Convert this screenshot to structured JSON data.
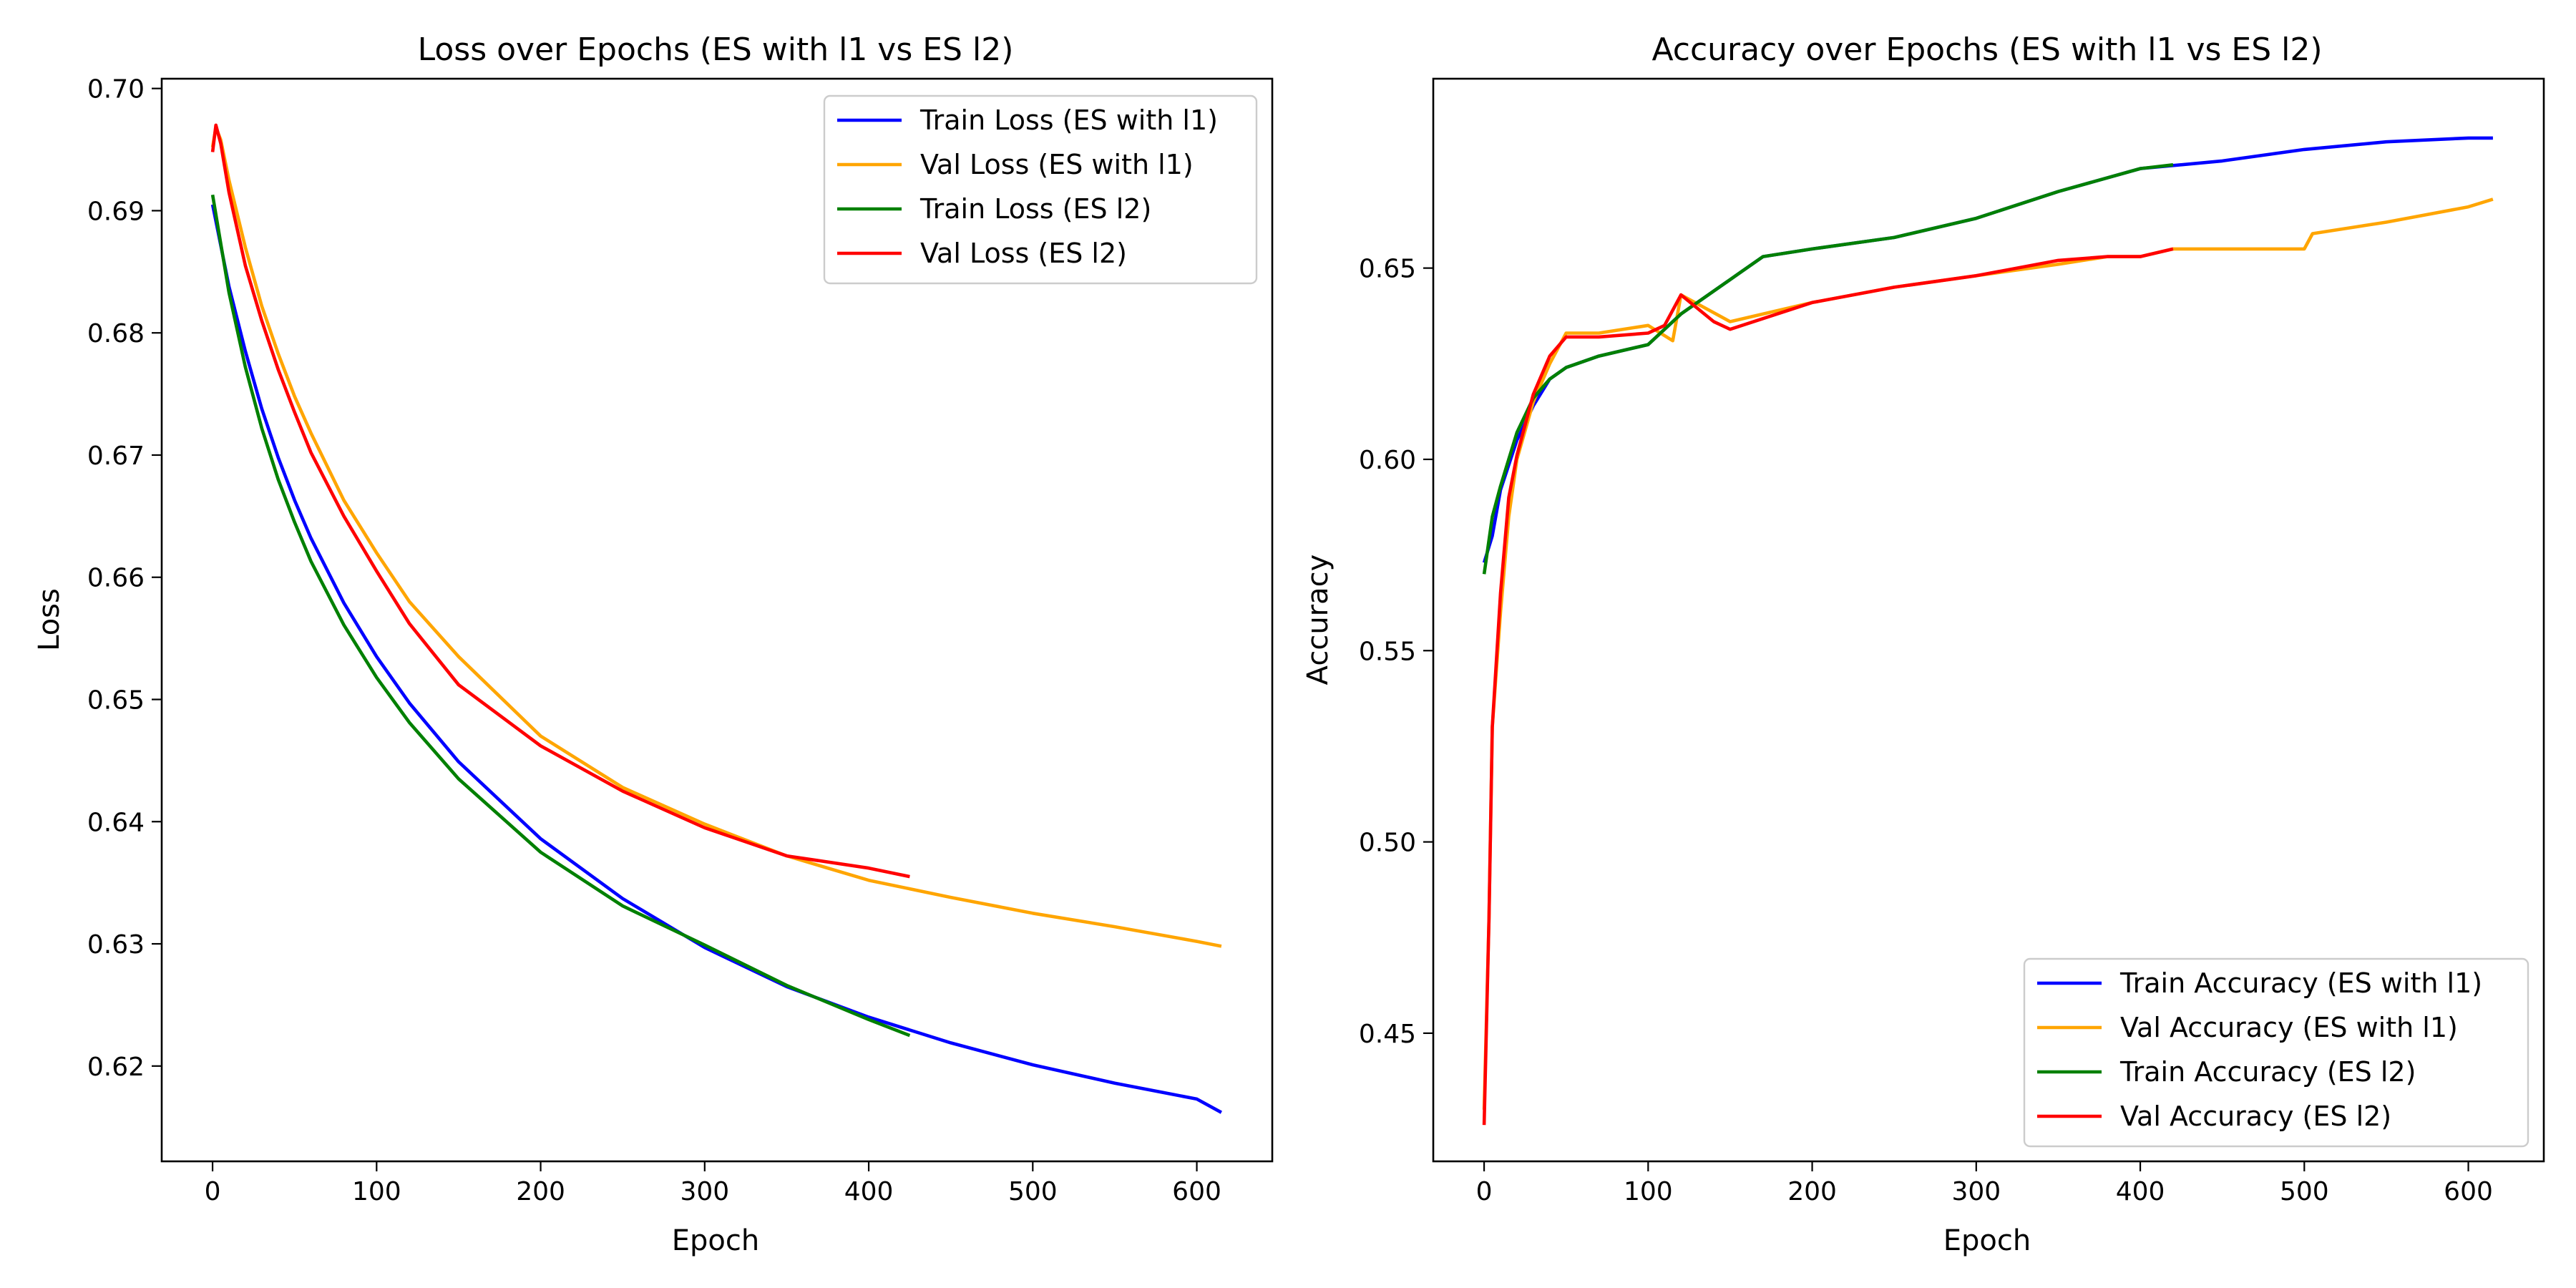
{
  "chart_data": [
    {
      "type": "line",
      "title": "Loss over Epochs (ES with l1 vs ES l2)",
      "xlabel": "Epoch",
      "ylabel": "Loss",
      "xlim": [
        -31,
        646
      ],
      "ylim": [
        0.6122,
        0.7008
      ],
      "xticks": [
        0,
        100,
        200,
        300,
        400,
        500,
        600
      ],
      "yticks": [
        0.62,
        0.63,
        0.64,
        0.65,
        0.66,
        0.67,
        0.68,
        0.69,
        0.7
      ],
      "ytick_format": 2,
      "grid": false,
      "legend_position": "top-right",
      "series": [
        {
          "name": "Train Loss (ES with l1)",
          "color": "#0000ff",
          "x": [
            0,
            10,
            20,
            30,
            40,
            50,
            60,
            80,
            100,
            120,
            150,
            200,
            250,
            300,
            350,
            400,
            450,
            500,
            550,
            600,
            615
          ],
          "y": [
            0.6905,
            0.6838,
            0.6785,
            0.6738,
            0.6698,
            0.6663,
            0.6632,
            0.6579,
            0.6535,
            0.6497,
            0.6449,
            0.6386,
            0.6337,
            0.6297,
            0.6265,
            0.624,
            0.6219,
            0.6201,
            0.6186,
            0.6173,
            0.6162
          ]
        },
        {
          "name": "Val Loss (ES with l1)",
          "color": "#ffa500",
          "x": [
            0,
            2,
            5,
            10,
            20,
            30,
            40,
            50,
            60,
            80,
            100,
            120,
            150,
            200,
            250,
            300,
            350,
            400,
            450,
            500,
            550,
            600,
            615
          ],
          "y": [
            0.6952,
            0.6968,
            0.6958,
            0.6925,
            0.687,
            0.6822,
            0.6783,
            0.6748,
            0.6718,
            0.6663,
            0.662,
            0.658,
            0.6535,
            0.647,
            0.6428,
            0.6398,
            0.6372,
            0.6352,
            0.6338,
            0.6325,
            0.6314,
            0.6302,
            0.6298
          ]
        },
        {
          "name": "Train Loss (ES l2)",
          "color": "#008000",
          "x": [
            0,
            10,
            20,
            30,
            40,
            50,
            60,
            80,
            100,
            120,
            150,
            200,
            250,
            300,
            350,
            400,
            425
          ],
          "y": [
            0.6913,
            0.6833,
            0.6772,
            0.6722,
            0.668,
            0.6645,
            0.6613,
            0.6561,
            0.6518,
            0.6481,
            0.6435,
            0.6375,
            0.6331,
            0.6299,
            0.6266,
            0.6238,
            0.6225
          ]
        },
        {
          "name": "Val Loss (ES l2)",
          "color": "#ff0000",
          "x": [
            0,
            2,
            5,
            10,
            20,
            30,
            40,
            50,
            60,
            80,
            100,
            120,
            150,
            200,
            250,
            300,
            350,
            400,
            425
          ],
          "y": [
            0.6948,
            0.697,
            0.6955,
            0.6915,
            0.6855,
            0.681,
            0.677,
            0.6735,
            0.6702,
            0.665,
            0.6605,
            0.6562,
            0.6512,
            0.6462,
            0.6425,
            0.6395,
            0.6372,
            0.6362,
            0.6355
          ]
        }
      ]
    },
    {
      "type": "line",
      "title": "Accuracy over Epochs (ES with l1 vs ES l2)",
      "xlabel": "Epoch",
      "ylabel": "Accuracy",
      "xlim": [
        -31,
        646
      ],
      "ylim": [
        0.4165,
        0.6995
      ],
      "xticks": [
        0,
        100,
        200,
        300,
        400,
        500,
        600
      ],
      "yticks": [
        0.45,
        0.5,
        0.55,
        0.6,
        0.65
      ],
      "ytick_format": 2,
      "grid": false,
      "legend_position": "bottom-right",
      "series": [
        {
          "name": "Train Accuracy (ES with l1)",
          "color": "#0000ff",
          "x": [
            0,
            5,
            10,
            20,
            30,
            40,
            50,
            70,
            100,
            120,
            150,
            170,
            200,
            250,
            300,
            350,
            400,
            450,
            500,
            550,
            600,
            615
          ],
          "y": [
            0.573,
            0.58,
            0.592,
            0.605,
            0.614,
            0.621,
            0.624,
            0.627,
            0.63,
            0.638,
            0.647,
            0.653,
            0.655,
            0.658,
            0.663,
            0.67,
            0.676,
            0.678,
            0.681,
            0.683,
            0.684,
            0.684
          ]
        },
        {
          "name": "Val Accuracy (ES with l1)",
          "color": "#ffa500",
          "x": [
            0,
            3,
            5,
            10,
            15,
            20,
            30,
            40,
            50,
            70,
            100,
            115,
            120,
            150,
            200,
            250,
            300,
            350,
            380,
            400,
            420,
            450,
            500,
            505,
            550,
            600,
            615
          ],
          "y": [
            0.43,
            0.48,
            0.53,
            0.56,
            0.585,
            0.6,
            0.615,
            0.625,
            0.633,
            0.633,
            0.635,
            0.631,
            0.643,
            0.636,
            0.641,
            0.645,
            0.648,
            0.651,
            0.653,
            0.653,
            0.655,
            0.655,
            0.655,
            0.659,
            0.662,
            0.666,
            0.668
          ]
        },
        {
          "name": "Train Accuracy (ES l2)",
          "color": "#008000",
          "x": [
            0,
            5,
            10,
            20,
            30,
            40,
            50,
            70,
            100,
            120,
            150,
            170,
            200,
            250,
            300,
            350,
            400,
            420
          ],
          "y": [
            0.57,
            0.585,
            0.593,
            0.607,
            0.616,
            0.621,
            0.624,
            0.627,
            0.63,
            0.638,
            0.647,
            0.653,
            0.655,
            0.658,
            0.663,
            0.67,
            0.676,
            0.677
          ]
        },
        {
          "name": "Val Accuracy (ES l2)",
          "color": "#ff0000",
          "x": [
            0,
            3,
            5,
            10,
            15,
            20,
            30,
            40,
            50,
            70,
            100,
            110,
            120,
            140,
            150,
            200,
            250,
            300,
            350,
            380,
            400,
            420
          ],
          "y": [
            0.426,
            0.48,
            0.53,
            0.565,
            0.59,
            0.601,
            0.617,
            0.627,
            0.632,
            0.632,
            0.633,
            0.635,
            0.643,
            0.636,
            0.634,
            0.641,
            0.645,
            0.648,
            0.652,
            0.653,
            0.653,
            0.655
          ]
        }
      ]
    }
  ]
}
